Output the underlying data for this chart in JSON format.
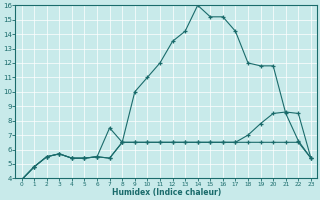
{
  "xlabel": "Humidex (Indice chaleur)",
  "bg_color": "#c8eaea",
  "line_color": "#1a6b6b",
  "grid_color": "#ffffff",
  "xlim": [
    -0.5,
    23.5
  ],
  "ylim": [
    4,
    16
  ],
  "xticks": [
    0,
    1,
    2,
    3,
    4,
    5,
    6,
    7,
    8,
    9,
    10,
    11,
    12,
    13,
    14,
    15,
    16,
    17,
    18,
    19,
    20,
    21,
    22,
    23
  ],
  "yticks": [
    4,
    5,
    6,
    7,
    8,
    9,
    10,
    11,
    12,
    13,
    14,
    15,
    16
  ],
  "line1_x": [
    0,
    1,
    2,
    3,
    4,
    5,
    6,
    7,
    8,
    9,
    10,
    11,
    12,
    13,
    14,
    15,
    16,
    17,
    18,
    19,
    20,
    21,
    22,
    23
  ],
  "line1_y": [
    3.9,
    4.8,
    5.5,
    5.7,
    5.4,
    5.4,
    5.5,
    5.4,
    6.5,
    10.0,
    11.0,
    12.0,
    13.5,
    14.2,
    16.0,
    15.2,
    15.2,
    14.2,
    12.0,
    11.8,
    11.8,
    8.5,
    6.6,
    5.4
  ],
  "line2_x": [
    0,
    1,
    2,
    3,
    4,
    5,
    6,
    7,
    8,
    9,
    10,
    11,
    12,
    13,
    14,
    15,
    16,
    17,
    18,
    19,
    20,
    21,
    22,
    23
  ],
  "line2_y": [
    3.9,
    4.8,
    5.5,
    5.7,
    5.4,
    5.4,
    5.5,
    7.5,
    6.5,
    6.5,
    6.5,
    6.5,
    6.5,
    6.5,
    6.5,
    6.5,
    6.5,
    6.5,
    7.0,
    7.8,
    8.5,
    8.6,
    8.5,
    5.4
  ],
  "line3_x": [
    0,
    1,
    2,
    3,
    4,
    5,
    6,
    7,
    8,
    9,
    10,
    11,
    12,
    13,
    14,
    15,
    16,
    17,
    18,
    19,
    20,
    21,
    22,
    23
  ],
  "line3_y": [
    3.9,
    4.8,
    5.5,
    5.7,
    5.4,
    5.4,
    5.5,
    5.4,
    6.5,
    6.5,
    6.5,
    6.5,
    6.5,
    6.5,
    6.5,
    6.5,
    6.5,
    6.5,
    6.5,
    6.5,
    6.5,
    6.5,
    6.5,
    5.4
  ]
}
